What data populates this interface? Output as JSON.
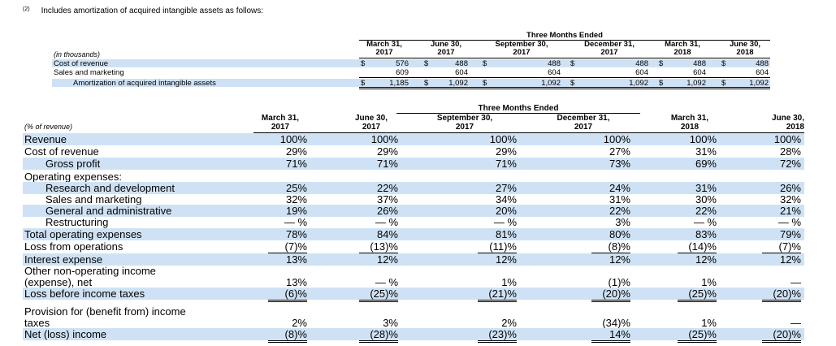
{
  "note": {
    "number": "(2)",
    "text": "Includes amortization of acquired intangible assets as follows:"
  },
  "table1": {
    "group_header": "Three Months Ended",
    "unit_label": "(in thousands)",
    "columns": [
      {
        "line1": "March 31,",
        "line2": "2017"
      },
      {
        "line1": "June 30,",
        "line2": "2017"
      },
      {
        "line1": "September 30,",
        "line2": "2017"
      },
      {
        "line1": "December 31,",
        "line2": "2017"
      },
      {
        "line1": "March 31,",
        "line2": "2018"
      },
      {
        "line1": "June 30,",
        "line2": "2018"
      }
    ],
    "rows": [
      {
        "label": "Cost of revenue",
        "values": [
          "576",
          "488",
          "488",
          "488",
          "488",
          "488"
        ],
        "dollar": true
      },
      {
        "label": "Sales and marketing",
        "values": [
          "609",
          "604",
          "604",
          "604",
          "604",
          "604"
        ],
        "dollar": false
      },
      {
        "label": "Amortization of acquired intangible assets",
        "values": [
          "1,185",
          "1,092",
          "1,092",
          "1,092",
          "1,092",
          "1,092"
        ],
        "dollar": true
      }
    ],
    "currency_symbol": "$"
  },
  "table2": {
    "group_header": "Three Months Ended",
    "unit_label": "(% of revenue)",
    "columns": [
      {
        "line1": "March 31,",
        "line2": "2017"
      },
      {
        "line1": "June 30,",
        "line2": "2017"
      },
      {
        "line1": "September 30,",
        "line2": "2017"
      },
      {
        "line1": "December 31,",
        "line2": "2017"
      },
      {
        "line1": "March 31,",
        "line2": "2018"
      },
      {
        "line1": "June 30,",
        "line2": "2018"
      }
    ],
    "rows": [
      {
        "label": "Revenue",
        "values": [
          "100%",
          "100%",
          "100%",
          "100%",
          "100%",
          "100%"
        ]
      },
      {
        "label": "Cost of revenue",
        "values": [
          "29%",
          "29%",
          "29%",
          "27%",
          "31%",
          "28%"
        ]
      },
      {
        "label": "Gross profit",
        "values": [
          "71%",
          "71%",
          "71%",
          "73%",
          "69%",
          "72%"
        ]
      },
      {
        "label": "Operating expenses:",
        "values": [
          "",
          "",
          "",
          "",
          "",
          ""
        ]
      },
      {
        "label": "Research and development",
        "values": [
          "25%",
          "22%",
          "27%",
          "24%",
          "31%",
          "26%"
        ]
      },
      {
        "label": "Sales and marketing",
        "values": [
          "32%",
          "37%",
          "34%",
          "31%",
          "30%",
          "32%"
        ]
      },
      {
        "label": "General and administrative",
        "values": [
          "19%",
          "26%",
          "20%",
          "22%",
          "22%",
          "21%"
        ]
      },
      {
        "label": "Restructuring",
        "values": [
          "— %",
          "— %",
          "— %",
          "3%",
          "— %",
          "— %"
        ]
      },
      {
        "label": "Total operating expenses",
        "values": [
          "78%",
          "84%",
          "81%",
          "80%",
          "83%",
          "79%"
        ]
      },
      {
        "label": "Loss from operations",
        "values": [
          "(7)%",
          "(13)%",
          "(11)%",
          "(8)%",
          "(14)%",
          "(7)%"
        ]
      },
      {
        "label": "Interest expense",
        "values": [
          "13%",
          "12%",
          "12%",
          "12%",
          "12%",
          "12%"
        ]
      },
      {
        "label": "Other non-operating income",
        "values": [
          "",
          "",
          "",
          "",
          "",
          ""
        ]
      },
      {
        "label": "(expense), net",
        "values": [
          "13%",
          "— %",
          "1%",
          "(1)%",
          "1%",
          "—"
        ]
      },
      {
        "label": "Loss before income taxes",
        "values": [
          "(6)%",
          "(25)%",
          "(21)%",
          "(20)%",
          "(25)%",
          "(20)%"
        ]
      },
      {
        "label": "Provision for (benefit from) income",
        "values": [
          "",
          "",
          "",
          "",
          "",
          ""
        ]
      },
      {
        "label": "taxes",
        "values": [
          "2%",
          "3%",
          "2%",
          "(34)%",
          "1%",
          "—"
        ]
      },
      {
        "label": "Net (loss) income",
        "values": [
          "(8)%",
          "(28)%",
          "(23)%",
          "14%",
          "(25)%",
          "(20)%"
        ]
      }
    ]
  }
}
